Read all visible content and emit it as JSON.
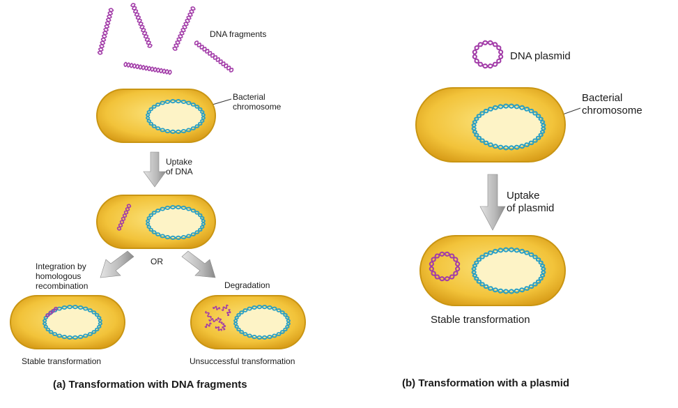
{
  "panel_a": {
    "dna_fragments_label": "DNA fragments",
    "bacterial_chromosome_label": [
      "Bacterial",
      "chromosome"
    ],
    "uptake_label": [
      "Uptake",
      "of DNA"
    ],
    "or_label": "OR",
    "integration_label": [
      "Integration by",
      "homologous",
      "recombination"
    ],
    "degradation_label": "Degradation",
    "stable_label": "Stable transformation",
    "unsuccessful_label": "Unsuccessful transformation",
    "caption": "(a) Transformation with DNA fragments"
  },
  "panel_b": {
    "plasmid_label": "DNA plasmid",
    "bacterial_chromosome_label": [
      "Bacterial",
      "chromosome"
    ],
    "uptake_label": [
      "Uptake",
      "of plasmid"
    ],
    "stable_label": "Stable transformation",
    "caption": "(b) Transformation with a plasmid"
  },
  "colors": {
    "cell_outer": "#d9a820",
    "cell_inner": "#f6cf4a",
    "chromosome": "#2a9fc4",
    "dna_fragment": "#a23ca8",
    "arrow": "#bdbdbd"
  }
}
